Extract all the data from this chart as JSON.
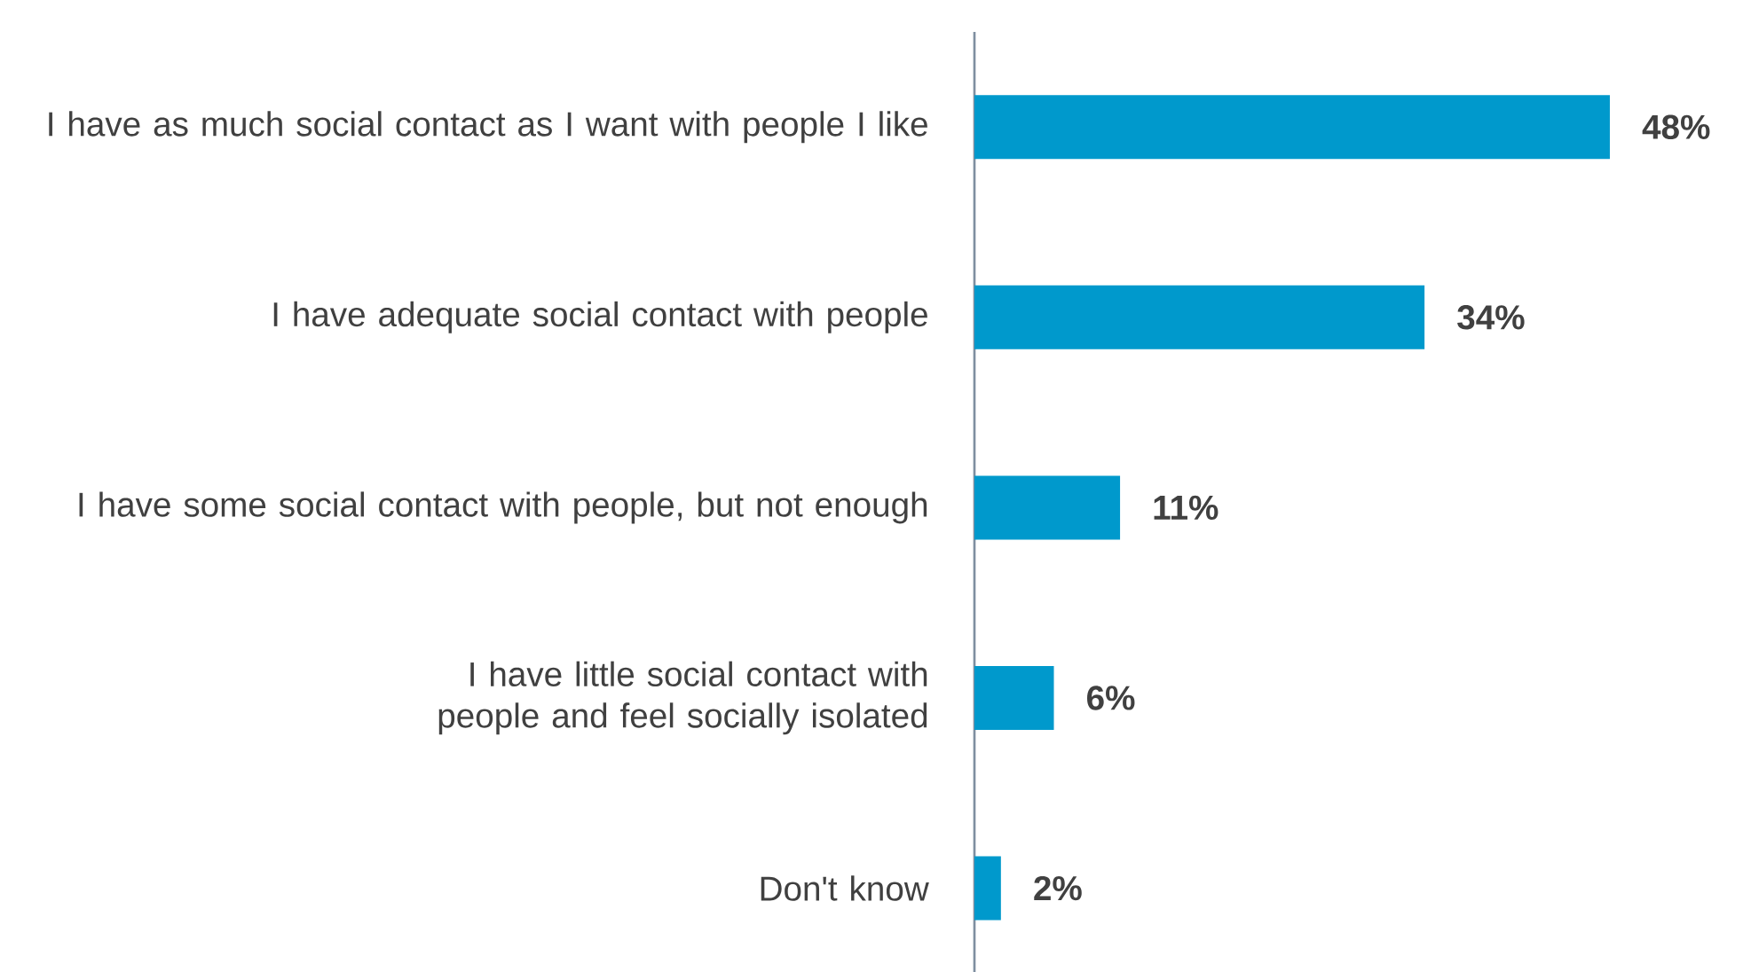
{
  "chart_data": {
    "type": "bar",
    "orientation": "horizontal",
    "categories": [
      "I have as much social contact as I want with people I like",
      "I have adequate social contact with people",
      "I have some social contact with people, but not enough",
      "I have little social contact with people and feel socially isolated",
      "Don't know"
    ],
    "values": [
      48,
      34,
      11,
      6,
      2
    ],
    "value_labels": [
      "48%",
      "34%",
      "11%",
      "6%",
      "2%"
    ],
    "color": "#0099cc"
  }
}
